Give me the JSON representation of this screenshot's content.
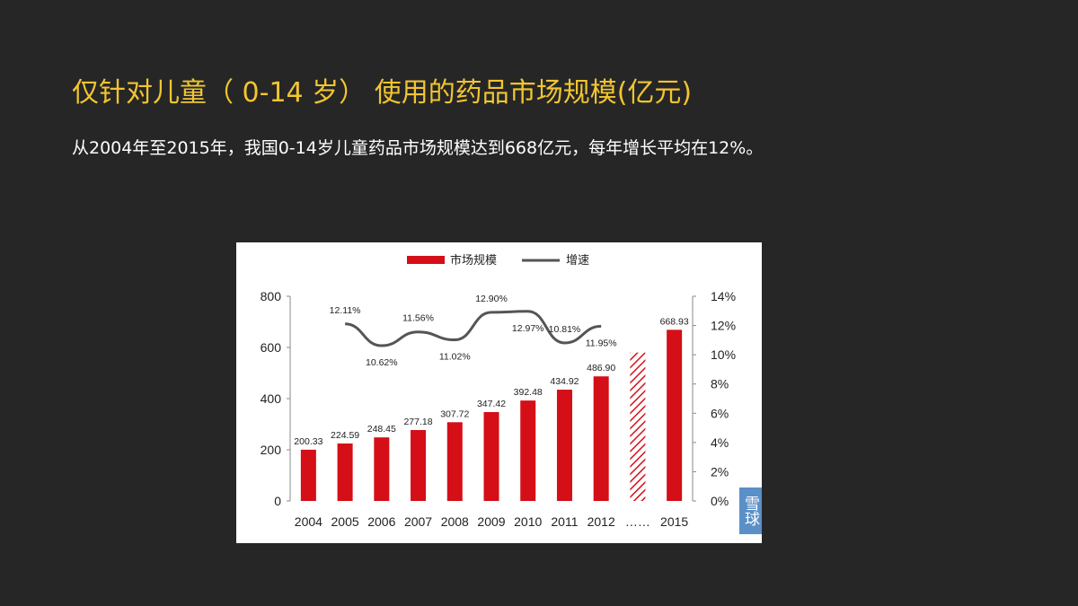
{
  "slide": {
    "title": "仅针对儿童（ 0-14 岁） 使用的药品市场规模(亿元)",
    "subtitle": "从2004年至2015年，我国0-14岁儿童药品市场规模达到668亿元，每年增长平均在12%。"
  },
  "watermark_text": "雪球",
  "colors": {
    "title": "#f2c530",
    "bar": "#d40f17",
    "line": "#555555",
    "background": "#262626"
  },
  "chart_data": {
    "type": "bar",
    "legend": [
      "市场规模",
      "增速"
    ],
    "legend_position": "top",
    "categories": [
      "2004",
      "2005",
      "2006",
      "2007",
      "2008",
      "2009",
      "2010",
      "2011",
      "2012",
      "……",
      "2015"
    ],
    "series": [
      {
        "name": "市场规模",
        "type": "bar",
        "values": [
          200.33,
          224.59,
          248.45,
          277.18,
          307.72,
          347.42,
          392.48,
          434.92,
          486.9,
          null,
          668.93
        ],
        "labels": [
          "200.33",
          "224.59",
          "248.45",
          "277.18",
          "307.72",
          "347.42",
          "392.48",
          "434.92",
          "486.90",
          "",
          "668.93"
        ]
      },
      {
        "name": "增速",
        "type": "line",
        "axis": "right",
        "values": [
          null,
          12.11,
          10.62,
          11.56,
          11.02,
          12.9,
          12.97,
          10.81,
          11.95,
          null,
          null
        ],
        "labels": [
          "",
          "12.11%",
          "10.62%",
          "11.56%",
          "11.02%",
          "12.90%",
          "12.97%",
          "10.81%",
          "11.95%",
          "",
          ""
        ]
      }
    ],
    "hatched_bar": {
      "category": "……",
      "value": 580
    },
    "y_left": {
      "range": [
        0,
        800
      ],
      "ticks": [
        "0",
        "200",
        "400",
        "600",
        "800"
      ]
    },
    "y_right": {
      "range": [
        0,
        14
      ],
      "ticks": [
        "0%",
        "2%",
        "4%",
        "6%",
        "8%",
        "10%",
        "12%",
        "14%"
      ]
    },
    "grid": false
  }
}
